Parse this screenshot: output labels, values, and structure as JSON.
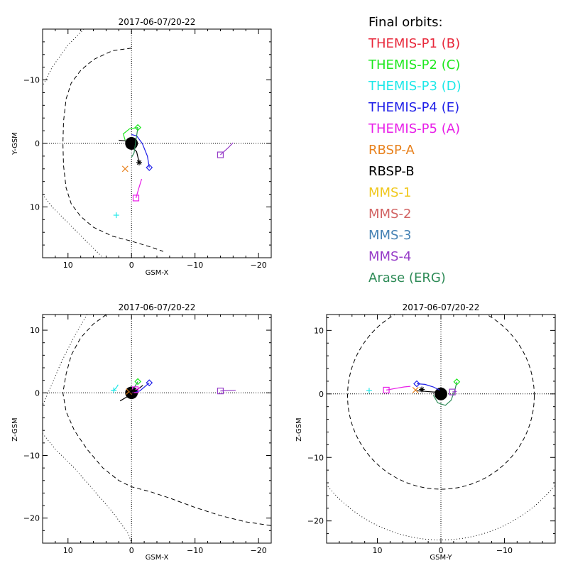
{
  "page": {
    "background": "#ffffff"
  },
  "legend": {
    "title": "Final orbits:",
    "entries": [
      {
        "label": "THEMIS-P1 (B)",
        "color": "#e8283b"
      },
      {
        "label": "THEMIS-P2 (C)",
        "color": "#1ee81e"
      },
      {
        "label": "THEMIS-P3 (D)",
        "color": "#1ee8e8"
      },
      {
        "label": "THEMIS-P4 (E)",
        "color": "#1e1ee8"
      },
      {
        "label": "THEMIS-P5 (A)",
        "color": "#e81ee8"
      },
      {
        "label": "RBSP-A",
        "color": "#e8821e"
      },
      {
        "label": "RBSP-B",
        "color": "#000000"
      },
      {
        "label": "MMS-1",
        "color": "#f0c81e"
      },
      {
        "label": "MMS-2",
        "color": "#d26464"
      },
      {
        "label": "MMS-3",
        "color": "#4682b4"
      },
      {
        "label": "MMS-4",
        "color": "#963cc8"
      },
      {
        "label": "Arase (ERG)",
        "color": "#2e8b57"
      }
    ]
  },
  "chart_data": [
    {
      "id": "xy",
      "type": "scatter",
      "title": "2017-06-07/20-22",
      "xlabel": "GSM-X",
      "ylabel": "Y-GSM",
      "xlim": [
        14,
        -22
      ],
      "ylim": [
        18,
        -18
      ],
      "xticks": [
        10,
        0,
        -10,
        -20
      ],
      "yticks": [
        -10,
        0,
        10
      ],
      "xtick_labels": [
        "10",
        "0",
        "−10",
        "−20"
      ],
      "ytick_labels": [
        "−10",
        "0",
        "10"
      ],
      "boundaries": [
        {
          "style": "dashed",
          "points": [
            [
              0,
              -15
            ],
            [
              3,
              -14.6
            ],
            [
              6,
              -13.2
            ],
            [
              8,
              -11.5
            ],
            [
              9.5,
              -9.5
            ],
            [
              10.3,
              -7
            ],
            [
              10.7,
              -3.5
            ],
            [
              10.8,
              0
            ],
            [
              10.7,
              3.5
            ],
            [
              10.3,
              7
            ],
            [
              9.5,
              9.5
            ],
            [
              8,
              11.5
            ],
            [
              6,
              13.2
            ],
            [
              3,
              14.6
            ],
            [
              0,
              15.4
            ],
            [
              -3,
              16.3
            ],
            [
              -5,
              17
            ]
          ]
        },
        {
          "style": "dotted",
          "points": [
            [
              7.5,
              -18
            ],
            [
              10,
              -15.5
            ],
            [
              12.5,
              -12
            ],
            [
              14,
              -9
            ]
          ]
        },
        {
          "style": "dotted",
          "points": [
            [
              14,
              8
            ],
            [
              12.5,
              10
            ],
            [
              10,
              12.5
            ],
            [
              7.5,
              15
            ],
            [
              5,
              17.5
            ],
            [
              4.5,
              18
            ]
          ]
        }
      ],
      "earth": {
        "x": 0,
        "y": 0,
        "radius": 1
      },
      "orbits": [
        {
          "name": "THEMIS-P2 (C)",
          "color": "#1ee81e",
          "points": [
            [
              -1,
              -2.5
            ],
            [
              0.3,
              -2.3
            ],
            [
              1.3,
              -1.5
            ],
            [
              1,
              -0.5
            ]
          ]
        },
        {
          "name": "THEMIS-P4 (E)",
          "color": "#1e1ee8",
          "points": [
            [
              -2.8,
              3.8
            ],
            [
              -2.5,
              2
            ],
            [
              -1.7,
              0
            ],
            [
              -0.8,
              -1.2
            ],
            [
              0,
              -1.4
            ]
          ]
        },
        {
          "name": "THEMIS-P5 (A)",
          "color": "#e81ee8",
          "points": [
            [
              -0.7,
              8.6
            ],
            [
              -1.1,
              7.2
            ],
            [
              -1.6,
              5.6
            ]
          ]
        },
        {
          "name": "MMS-4",
          "color": "#963cc8",
          "points": [
            [
              -14,
              1.8
            ],
            [
              -15.2,
              0.7
            ],
            [
              -16,
              -0.1
            ]
          ]
        },
        {
          "name": "RBSP-B",
          "color": "#000000",
          "points": [
            [
              -1.2,
              3
            ],
            [
              -0.8,
              1.3
            ],
            [
              0.2,
              0.3
            ],
            [
              1,
              -0.4
            ],
            [
              2,
              -0.5
            ]
          ]
        },
        {
          "name": "Arase (ERG)",
          "color": "#2e8b57",
          "points": [
            [
              -1,
              -2.5
            ],
            [
              -0.4,
              1.5
            ],
            [
              0,
              2.2
            ]
          ]
        }
      ],
      "markers": [
        {
          "name": "THEMIS-P3 (D)",
          "color": "#1ee8e8",
          "symbol": "plus",
          "x": 2.4,
          "y": 11.3
        },
        {
          "name": "THEMIS-P2 (C)",
          "color": "#1ee81e",
          "symbol": "diamond",
          "x": -1,
          "y": -2.5
        },
        {
          "name": "THEMIS-P4 (E)",
          "color": "#1e1ee8",
          "symbol": "diamond",
          "x": -2.8,
          "y": 3.8
        },
        {
          "name": "THEMIS-P5 (A)",
          "color": "#e81ee8",
          "symbol": "square",
          "x": -0.7,
          "y": 8.6
        },
        {
          "name": "RBSP-A",
          "color": "#e8821e",
          "symbol": "x",
          "x": 1,
          "y": 4
        },
        {
          "name": "RBSP-B",
          "color": "#000000",
          "symbol": "asterisk",
          "x": -1.2,
          "y": 3
        },
        {
          "name": "MMS-4",
          "color": "#963cc8",
          "symbol": "square",
          "x": -14,
          "y": 1.8
        }
      ]
    },
    {
      "id": "xz",
      "type": "scatter",
      "title": "2017-06-07/20-22",
      "xlabel": "GSM-X",
      "ylabel": "Z-GSM",
      "xlim": [
        14,
        -22
      ],
      "ylim": [
        -24,
        12.5
      ],
      "xticks": [
        10,
        0,
        -10,
        -20
      ],
      "yticks": [
        -20,
        -10,
        0,
        10
      ],
      "xtick_labels": [
        "10",
        "0",
        "−10",
        "−20"
      ],
      "ytick_labels": [
        "−20",
        "−10",
        "0",
        "10"
      ],
      "boundaries": [
        {
          "style": "dashed",
          "points": [
            [
              0,
              14.5
            ],
            [
              3,
              13.2
            ],
            [
              6,
              11
            ],
            [
              8,
              8.8
            ],
            [
              9.5,
              6
            ],
            [
              10.3,
              3
            ],
            [
              10.8,
              0
            ],
            [
              10.3,
              -3
            ],
            [
              9,
              -6
            ],
            [
              7,
              -9
            ],
            [
              4.5,
              -12
            ],
            [
              2,
              -14
            ],
            [
              0,
              -15
            ],
            [
              -3,
              -15.8
            ],
            [
              -6,
              -16.8
            ],
            [
              -10,
              -18.3
            ],
            [
              -14,
              -19.6
            ],
            [
              -18,
              -20.6
            ],
            [
              -22,
              -21.2
            ]
          ]
        },
        {
          "style": "dotted",
          "points": [
            [
              7,
              12.5
            ],
            [
              9,
              9
            ],
            [
              11,
              5
            ],
            [
              12.7,
              1
            ],
            [
              14,
              -2
            ]
          ]
        },
        {
          "style": "dotted",
          "points": [
            [
              14,
              -6.5
            ],
            [
              12,
              -9
            ],
            [
              9,
              -12
            ],
            [
              6,
              -15.5
            ],
            [
              3,
              -19
            ],
            [
              0.5,
              -22.5
            ],
            [
              0,
              -24
            ]
          ]
        }
      ],
      "earth": {
        "x": 0,
        "y": 0,
        "radius": 1
      },
      "orbits": [
        {
          "name": "RBSP-B",
          "color": "#000000",
          "points": [
            [
              1.8,
              -1.3
            ],
            [
              0.8,
              -0.7
            ],
            [
              0,
              -0.2
            ],
            [
              -0.9,
              0.5
            ],
            [
              -1.8,
              1.2
            ]
          ]
        },
        {
          "name": "THEMIS-P3 (D)",
          "color": "#1ee8e8",
          "points": [
            [
              2.8,
              0.4
            ],
            [
              2.4,
              0.8
            ],
            [
              2.1,
              1.3
            ]
          ]
        },
        {
          "name": "THEMIS-P4 (E)",
          "color": "#1e1ee8",
          "points": [
            [
              -2.8,
              1.6
            ],
            [
              -2,
              0.9
            ],
            [
              -1.3,
              0.3
            ],
            [
              -0.6,
              0.1
            ]
          ]
        },
        {
          "name": "THEMIS-P5 (A)",
          "color": "#e81ee8",
          "points": [
            [
              -0.6,
              0.5
            ],
            [
              -1.4,
              0.8
            ]
          ]
        },
        {
          "name": "MMS-4",
          "color": "#963cc8",
          "points": [
            [
              -14,
              0.3
            ],
            [
              -16.4,
              0.4
            ]
          ]
        },
        {
          "name": "Arase (ERG)",
          "color": "#2e8b57",
          "points": [
            [
              -1,
              1.8
            ],
            [
              -0.4,
              0.8
            ],
            [
              0,
              0.5
            ]
          ]
        }
      ],
      "markers": [
        {
          "name": "THEMIS-P3 (D)",
          "color": "#1ee8e8",
          "symbol": "plus",
          "x": 2.8,
          "y": 0.4
        },
        {
          "name": "THEMIS-P2 (C)",
          "color": "#1ee81e",
          "symbol": "diamond",
          "x": -1,
          "y": 1.8
        },
        {
          "name": "THEMIS-P4 (E)",
          "color": "#1e1ee8",
          "symbol": "diamond",
          "x": -2.8,
          "y": 1.6
        },
        {
          "name": "THEMIS-P5 (A)",
          "color": "#e81ee8",
          "symbol": "square",
          "x": -0.6,
          "y": 0.5
        },
        {
          "name": "RBSP-A",
          "color": "#e8821e",
          "symbol": "x",
          "x": 0.4,
          "y": 0.2
        },
        {
          "name": "RBSP-B",
          "color": "#000000",
          "symbol": "asterisk",
          "x": 0,
          "y": 0.3
        },
        {
          "name": "MMS-4",
          "color": "#963cc8",
          "symbol": "square",
          "x": -14,
          "y": 0.3
        }
      ]
    },
    {
      "id": "yz",
      "type": "scatter",
      "title": "2017-06-07/20-22",
      "xlabel": "GSM-Y",
      "ylabel": "Z-GSM",
      "xlim": [
        18,
        -18
      ],
      "ylim": [
        -23.5,
        12.5
      ],
      "xticks": [
        10,
        0,
        -10
      ],
      "yticks": [
        -20,
        -10,
        0,
        10
      ],
      "xtick_labels": [
        "10",
        "0",
        "−10"
      ],
      "ytick_labels": [
        "−20",
        "−10",
        "0",
        "10"
      ],
      "boundaries": [
        {
          "style": "dashed",
          "circle": {
            "cx": 0,
            "cy": -0.3,
            "r": 14.7
          }
        },
        {
          "style": "dotted",
          "circle": {
            "cx": 0,
            "cy": 0,
            "r": 23
          }
        }
      ],
      "earth": {
        "x": 0,
        "y": 0,
        "radius": 1
      },
      "orbits": [
        {
          "name": "THEMIS-P5 (A)",
          "color": "#e81ee8",
          "points": [
            [
              8.6,
              0.6
            ],
            [
              7,
              0.9
            ],
            [
              5.8,
              1.1
            ],
            [
              4.8,
              1.2
            ]
          ]
        },
        {
          "name": "THEMIS-P4 (E)",
          "color": "#1e1ee8",
          "points": [
            [
              3.8,
              1.6
            ],
            [
              2.5,
              1.5
            ],
            [
              1.2,
              1.1
            ],
            [
              0.2,
              0.6
            ]
          ]
        },
        {
          "name": "RBSP-B",
          "color": "#000000",
          "points": [
            [
              4,
              0.5
            ],
            [
              2.5,
              0.4
            ],
            [
              1.2,
              0.3
            ],
            [
              0,
              0.3
            ]
          ]
        },
        {
          "name": "Arase (ERG)",
          "color": "#2e8b57",
          "points": [
            [
              1.2,
              -0.2
            ],
            [
              0.5,
              -1.4
            ],
            [
              -0.7,
              -1.8
            ],
            [
              -1.6,
              -1
            ],
            [
              -2.2,
              0.6
            ],
            [
              -2.5,
              1.9
            ]
          ]
        },
        {
          "name": "MMS-4",
          "color": "#963cc8",
          "points": [
            [
              -1.8,
              0.3
            ],
            [
              -2.5,
              0.4
            ]
          ]
        }
      ],
      "markers": [
        {
          "name": "THEMIS-P3 (D)",
          "color": "#1ee8e8",
          "symbol": "plus",
          "x": 11.3,
          "y": 0.5
        },
        {
          "name": "THEMIS-P5 (A)",
          "color": "#e81ee8",
          "symbol": "square",
          "x": 8.6,
          "y": 0.6
        },
        {
          "name": "RBSP-A",
          "color": "#e8821e",
          "symbol": "x",
          "x": 4,
          "y": 0.6
        },
        {
          "name": "RBSP-B",
          "color": "#000000",
          "symbol": "asterisk",
          "x": 3,
          "y": 0.7
        },
        {
          "name": "THEMIS-P4 (E)",
          "color": "#1e1ee8",
          "symbol": "diamond",
          "x": 3.8,
          "y": 1.6
        },
        {
          "name": "THEMIS-P2 (C)",
          "color": "#1ee81e",
          "symbol": "diamond",
          "x": -2.5,
          "y": 1.9
        },
        {
          "name": "MMS-4",
          "color": "#963cc8",
          "symbol": "square",
          "x": -1.8,
          "y": 0.3
        }
      ]
    }
  ]
}
